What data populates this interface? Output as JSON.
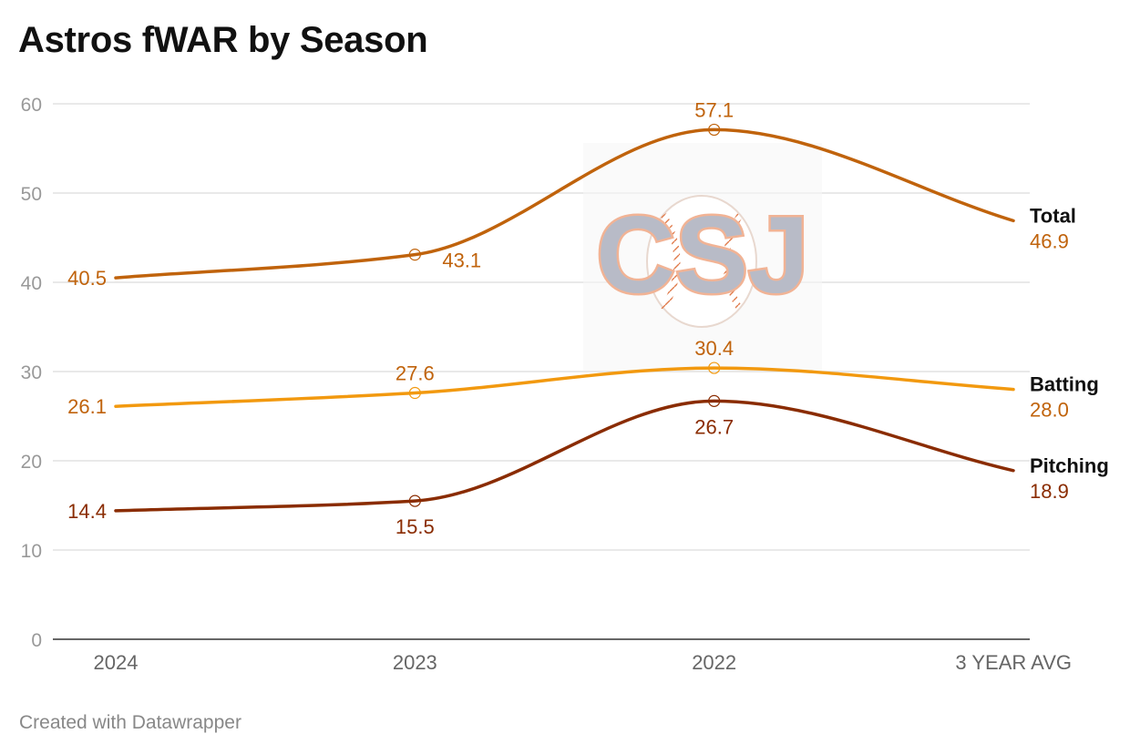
{
  "chart_data": {
    "type": "line",
    "title": "Astros fWAR by Season",
    "footer": "Created with Datawrapper",
    "watermark_text": "CSJ",
    "categories": [
      "2024",
      "2023",
      "2022",
      "3 YEAR AVG"
    ],
    "ylim": [
      0,
      60
    ],
    "yticks": [
      0,
      10,
      20,
      30,
      40,
      50,
      60
    ],
    "ytick_labels": [
      "0",
      "10",
      "20",
      "30",
      "40",
      "50",
      "60"
    ],
    "grid": true,
    "legend": "direct labels at line ends",
    "series": [
      {
        "name": "Total",
        "values": [
          40.5,
          43.1,
          57.1,
          46.9
        ],
        "labels": [
          "40.5",
          "43.1",
          "57.1",
          "46.9"
        ],
        "color": "#c0630c",
        "label_color": "#c0630c"
      },
      {
        "name": "Batting",
        "values": [
          26.1,
          27.6,
          30.4,
          28.0
        ],
        "labels": [
          "26.1",
          "27.6",
          "30.4",
          "28.0"
        ],
        "color": "#f2990f",
        "label_color": "#c0630c"
      },
      {
        "name": "Pitching",
        "values": [
          14.4,
          15.5,
          26.7,
          18.9
        ],
        "labels": [
          "14.4",
          "15.5",
          "26.7",
          "18.9"
        ],
        "color": "#8a2c02",
        "label_color": "#8a2c02"
      }
    ]
  }
}
